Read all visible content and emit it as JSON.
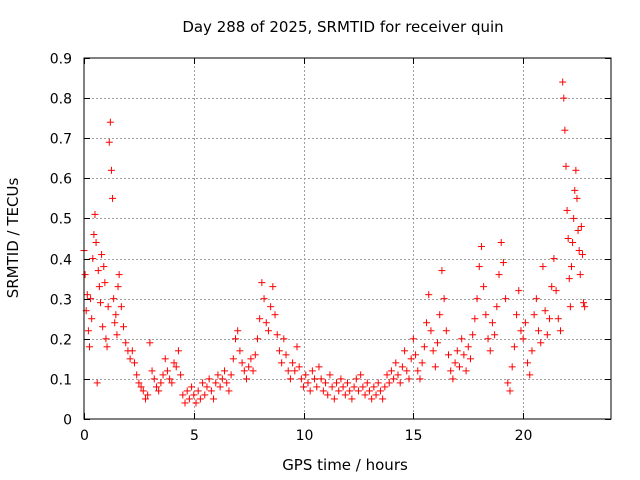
{
  "chart_data": {
    "type": "scatter",
    "title": "Day 288 of 2025, SRMTID for receiver quin",
    "xlabel": "GPS time / hours",
    "ylabel": "SRMTID / TECUs",
    "xlim": [
      0,
      24
    ],
    "ylim": [
      0,
      0.9
    ],
    "xticks": [
      0,
      5,
      10,
      15,
      20
    ],
    "yticks": [
      0,
      0.1,
      0.2,
      0.3,
      0.4,
      0.5,
      0.6,
      0.7,
      0.8,
      0.9
    ],
    "xtick_labels": [
      "0",
      "5",
      "10",
      "15",
      "20"
    ],
    "ytick_labels": [
      "0",
      "0.1",
      "0.2",
      "0.3",
      "0.4",
      "0.5",
      "0.6",
      "0.7",
      "0.8",
      "0.9"
    ],
    "grid": true,
    "marker": "+",
    "color": "#ff0000",
    "series": [
      {
        "name": "SRMTID",
        "points": [
          [
            0.0,
            0.42
          ],
          [
            0.05,
            0.36
          ],
          [
            0.1,
            0.27
          ],
          [
            0.15,
            0.31
          ],
          [
            0.2,
            0.22
          ],
          [
            0.25,
            0.18
          ],
          [
            0.3,
            0.3
          ],
          [
            0.35,
            0.25
          ],
          [
            0.4,
            0.4
          ],
          [
            0.45,
            0.46
          ],
          [
            0.5,
            0.51
          ],
          [
            0.55,
            0.44
          ],
          [
            0.6,
            0.09
          ],
          [
            0.65,
            0.37
          ],
          [
            0.7,
            0.33
          ],
          [
            0.75,
            0.29
          ],
          [
            0.8,
            0.41
          ],
          [
            0.85,
            0.23
          ],
          [
            0.9,
            0.38
          ],
          [
            0.95,
            0.34
          ],
          [
            1.0,
            0.2
          ],
          [
            1.05,
            0.18
          ],
          [
            1.1,
            0.28
          ],
          [
            1.15,
            0.69
          ],
          [
            1.2,
            0.74
          ],
          [
            1.25,
            0.62
          ],
          [
            1.3,
            0.55
          ],
          [
            1.35,
            0.3
          ],
          [
            1.4,
            0.24
          ],
          [
            1.45,
            0.26
          ],
          [
            1.5,
            0.21
          ],
          [
            1.55,
            0.33
          ],
          [
            1.6,
            0.36
          ],
          [
            1.7,
            0.28
          ],
          [
            1.8,
            0.23
          ],
          [
            1.9,
            0.19
          ],
          [
            2.0,
            0.17
          ],
          [
            2.1,
            0.15
          ],
          [
            2.2,
            0.17
          ],
          [
            2.3,
            0.14
          ],
          [
            2.4,
            0.11
          ],
          [
            2.5,
            0.09
          ],
          [
            2.6,
            0.08
          ],
          [
            2.7,
            0.07
          ],
          [
            2.8,
            0.05
          ],
          [
            2.9,
            0.06
          ],
          [
            3.0,
            0.19
          ],
          [
            3.1,
            0.12
          ],
          [
            3.2,
            0.1
          ],
          [
            3.3,
            0.08
          ],
          [
            3.4,
            0.07
          ],
          [
            3.5,
            0.09
          ],
          [
            3.6,
            0.11
          ],
          [
            3.7,
            0.15
          ],
          [
            3.8,
            0.12
          ],
          [
            3.9,
            0.1
          ],
          [
            4.0,
            0.09
          ],
          [
            4.1,
            0.14
          ],
          [
            4.2,
            0.13
          ],
          [
            4.3,
            0.17
          ],
          [
            4.4,
            0.11
          ],
          [
            4.5,
            0.06
          ],
          [
            4.6,
            0.04
          ],
          [
            4.7,
            0.07
          ],
          [
            4.8,
            0.05
          ],
          [
            4.9,
            0.08
          ],
          [
            5.0,
            0.06
          ],
          [
            5.1,
            0.04
          ],
          [
            5.2,
            0.07
          ],
          [
            5.3,
            0.05
          ],
          [
            5.4,
            0.09
          ],
          [
            5.5,
            0.06
          ],
          [
            5.6,
            0.08
          ],
          [
            5.7,
            0.1
          ],
          [
            5.8,
            0.07
          ],
          [
            5.9,
            0.05
          ],
          [
            6.0,
            0.09
          ],
          [
            6.1,
            0.11
          ],
          [
            6.2,
            0.08
          ],
          [
            6.3,
            0.1
          ],
          [
            6.4,
            0.12
          ],
          [
            6.5,
            0.09
          ],
          [
            6.6,
            0.07
          ],
          [
            6.7,
            0.11
          ],
          [
            6.8,
            0.15
          ],
          [
            6.9,
            0.2
          ],
          [
            7.0,
            0.22
          ],
          [
            7.1,
            0.17
          ],
          [
            7.2,
            0.14
          ],
          [
            7.3,
            0.12
          ],
          [
            7.4,
            0.1
          ],
          [
            7.5,
            0.13
          ],
          [
            7.6,
            0.15
          ],
          [
            7.7,
            0.12
          ],
          [
            7.8,
            0.16
          ],
          [
            7.9,
            0.2
          ],
          [
            8.0,
            0.25
          ],
          [
            8.1,
            0.34
          ],
          [
            8.2,
            0.3
          ],
          [
            8.3,
            0.24
          ],
          [
            8.4,
            0.22
          ],
          [
            8.5,
            0.28
          ],
          [
            8.6,
            0.33
          ],
          [
            8.7,
            0.26
          ],
          [
            8.8,
            0.21
          ],
          [
            8.9,
            0.17
          ],
          [
            9.0,
            0.14
          ],
          [
            9.1,
            0.2
          ],
          [
            9.2,
            0.16
          ],
          [
            9.3,
            0.12
          ],
          [
            9.4,
            0.1
          ],
          [
            9.5,
            0.14
          ],
          [
            9.6,
            0.12
          ],
          [
            9.7,
            0.18
          ],
          [
            9.8,
            0.13
          ],
          [
            9.9,
            0.1
          ],
          [
            10.0,
            0.08
          ],
          [
            10.1,
            0.11
          ],
          [
            10.2,
            0.09
          ],
          [
            10.3,
            0.07
          ],
          [
            10.4,
            0.12
          ],
          [
            10.5,
            0.1
          ],
          [
            10.6,
            0.08
          ],
          [
            10.7,
            0.13
          ],
          [
            10.8,
            0.1
          ],
          [
            10.9,
            0.07
          ],
          [
            11.0,
            0.09
          ],
          [
            11.1,
            0.06
          ],
          [
            11.2,
            0.11
          ],
          [
            11.3,
            0.08
          ],
          [
            11.4,
            0.05
          ],
          [
            11.5,
            0.09
          ],
          [
            11.6,
            0.07
          ],
          [
            11.7,
            0.1
          ],
          [
            11.8,
            0.08
          ],
          [
            11.9,
            0.06
          ],
          [
            12.0,
            0.09
          ],
          [
            12.1,
            0.07
          ],
          [
            12.2,
            0.05
          ],
          [
            12.3,
            0.08
          ],
          [
            12.4,
            0.1
          ],
          [
            12.5,
            0.07
          ],
          [
            12.6,
            0.11
          ],
          [
            12.7,
            0.08
          ],
          [
            12.8,
            0.06
          ],
          [
            12.9,
            0.09
          ],
          [
            13.0,
            0.07
          ],
          [
            13.1,
            0.05
          ],
          [
            13.2,
            0.08
          ],
          [
            13.3,
            0.06
          ],
          [
            13.4,
            0.09
          ],
          [
            13.5,
            0.07
          ],
          [
            13.6,
            0.05
          ],
          [
            13.7,
            0.08
          ],
          [
            13.8,
            0.11
          ],
          [
            13.9,
            0.09
          ],
          [
            14.0,
            0.12
          ],
          [
            14.1,
            0.1
          ],
          [
            14.2,
            0.14
          ],
          [
            14.3,
            0.11
          ],
          [
            14.4,
            0.09
          ],
          [
            14.5,
            0.13
          ],
          [
            14.6,
            0.17
          ],
          [
            14.7,
            0.12
          ],
          [
            14.8,
            0.1
          ],
          [
            14.9,
            0.15
          ],
          [
            15.0,
            0.2
          ],
          [
            15.1,
            0.16
          ],
          [
            15.2,
            0.12
          ],
          [
            15.3,
            0.1
          ],
          [
            15.4,
            0.14
          ],
          [
            15.5,
            0.18
          ],
          [
            15.6,
            0.24
          ],
          [
            15.7,
            0.31
          ],
          [
            15.8,
            0.22
          ],
          [
            15.9,
            0.17
          ],
          [
            16.0,
            0.13
          ],
          [
            16.1,
            0.19
          ],
          [
            16.2,
            0.26
          ],
          [
            16.3,
            0.37
          ],
          [
            16.4,
            0.3
          ],
          [
            16.5,
            0.22
          ],
          [
            16.6,
            0.16
          ],
          [
            16.7,
            0.12
          ],
          [
            16.8,
            0.1
          ],
          [
            16.9,
            0.14
          ],
          [
            17.0,
            0.17
          ],
          [
            17.1,
            0.13
          ],
          [
            17.2,
            0.2
          ],
          [
            17.3,
            0.16
          ],
          [
            17.4,
            0.12
          ],
          [
            17.5,
            0.18
          ],
          [
            17.6,
            0.15
          ],
          [
            17.7,
            0.21
          ],
          [
            17.8,
            0.25
          ],
          [
            17.9,
            0.3
          ],
          [
            18.0,
            0.38
          ],
          [
            18.1,
            0.43
          ],
          [
            18.2,
            0.33
          ],
          [
            18.3,
            0.26
          ],
          [
            18.4,
            0.2
          ],
          [
            18.5,
            0.17
          ],
          [
            18.6,
            0.24
          ],
          [
            18.7,
            0.21
          ],
          [
            18.8,
            0.28
          ],
          [
            18.9,
            0.36
          ],
          [
            19.0,
            0.44
          ],
          [
            19.1,
            0.39
          ],
          [
            19.2,
            0.3
          ],
          [
            19.3,
            0.09
          ],
          [
            19.4,
            0.07
          ],
          [
            19.5,
            0.13
          ],
          [
            19.6,
            0.18
          ],
          [
            19.7,
            0.26
          ],
          [
            19.8,
            0.32
          ],
          [
            19.9,
            0.22
          ],
          [
            20.0,
            0.2
          ],
          [
            20.1,
            0.24
          ],
          [
            20.2,
            0.14
          ],
          [
            20.3,
            0.11
          ],
          [
            20.4,
            0.17
          ],
          [
            20.5,
            0.26
          ],
          [
            20.6,
            0.3
          ],
          [
            20.7,
            0.22
          ],
          [
            20.8,
            0.19
          ],
          [
            20.9,
            0.38
          ],
          [
            21.0,
            0.27
          ],
          [
            21.1,
            0.21
          ],
          [
            21.2,
            0.25
          ],
          [
            21.3,
            0.33
          ],
          [
            21.4,
            0.4
          ],
          [
            21.5,
            0.32
          ],
          [
            21.6,
            0.25
          ],
          [
            21.7,
            0.22
          ],
          [
            21.8,
            0.84
          ],
          [
            21.85,
            0.8
          ],
          [
            21.9,
            0.72
          ],
          [
            21.95,
            0.63
          ],
          [
            22.0,
            0.52
          ],
          [
            22.05,
            0.45
          ],
          [
            22.1,
            0.35
          ],
          [
            22.15,
            0.28
          ],
          [
            22.2,
            0.38
          ],
          [
            22.25,
            0.44
          ],
          [
            22.3,
            0.5
          ],
          [
            22.35,
            0.57
          ],
          [
            22.4,
            0.62
          ],
          [
            22.45,
            0.55
          ],
          [
            22.5,
            0.47
          ],
          [
            22.55,
            0.42
          ],
          [
            22.6,
            0.36
          ],
          [
            22.65,
            0.48
          ],
          [
            22.7,
            0.41
          ],
          [
            22.75,
            0.29
          ],
          [
            22.8,
            0.28
          ]
        ]
      }
    ]
  }
}
